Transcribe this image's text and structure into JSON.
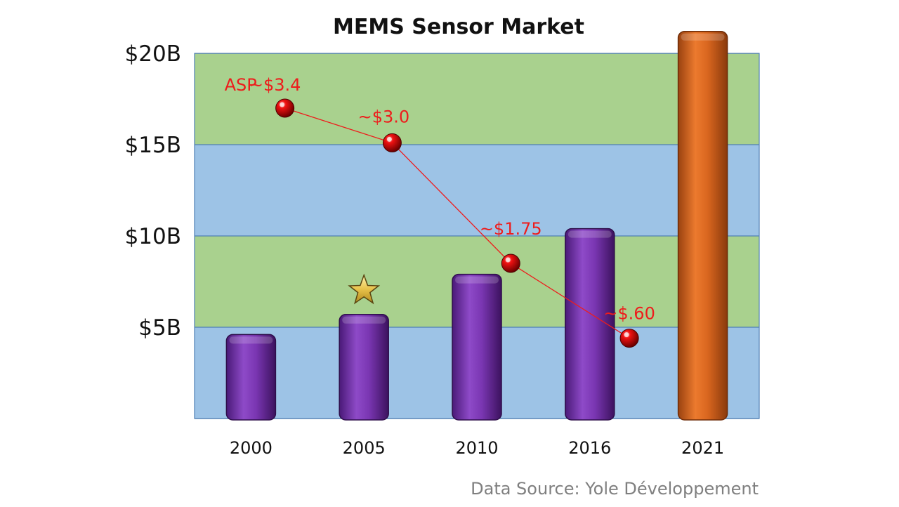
{
  "chart_data": {
    "type": "bar",
    "title": "MEMS Sensor Market",
    "categories": [
      "2000",
      "2005",
      "2010",
      "2016",
      "2021"
    ],
    "values": [
      4.6,
      5.7,
      7.9,
      10.4,
      21.2
    ],
    "ylim": [
      0,
      20
    ],
    "yticks": [
      5,
      10,
      15,
      20
    ],
    "ytick_labels": [
      "$5B",
      "$10B",
      "$15B",
      "$20B"
    ],
    "xlabel": "",
    "ylabel": "",
    "colors": {
      "bar": "#7030a0",
      "highlight_bar": "#d9661f",
      "band_green": "#a9d18e",
      "band_blue": "#9dc3e6",
      "asp_line": "#ee1c1c"
    },
    "highlight_index": 4,
    "star_index": 1,
    "asp_series": {
      "prefix": "ASP",
      "x_positions": [
        0.3,
        1.25,
        2.3,
        3.35
      ],
      "y_values": [
        17.0,
        15.1,
        8.5,
        4.4
      ],
      "labels": [
        "~$3.4",
        "~$3.0",
        "~$1.75",
        "~$.60"
      ]
    },
    "grid": "alternating-bands",
    "legend": "none"
  },
  "source": "Data Source: Yole Développement"
}
